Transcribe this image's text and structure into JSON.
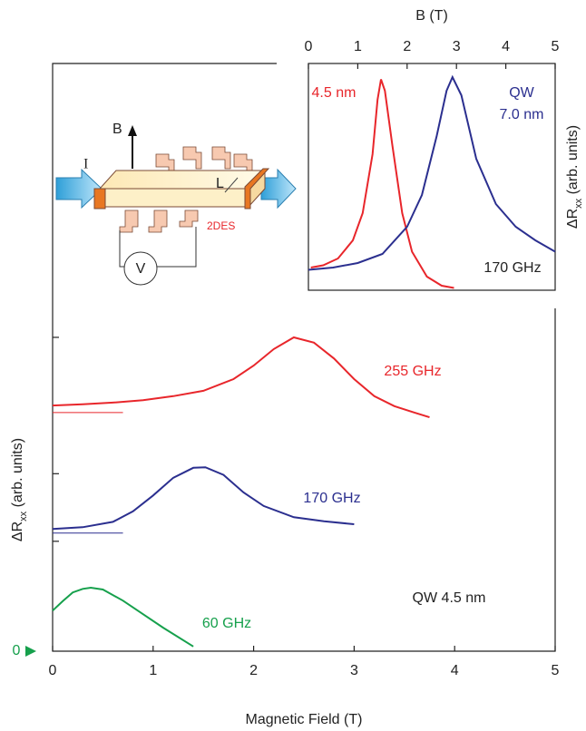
{
  "chart_data": [
    {
      "type": "line",
      "xlabel": "Magnetic Field (T)",
      "ylabel": {
        "main": "ΔR",
        "sub": "xx",
        "rest": " (arb. units)"
      },
      "xlim": [
        0,
        5
      ],
      "xticks": [
        0,
        1,
        2,
        3,
        4,
        5
      ],
      "ylim": [
        0,
        10
      ],
      "yticks": [
        0
      ],
      "zero_color": "#16a04c",
      "minor_yticks": [
        1.87,
        3.02,
        5.34
      ],
      "annotation": "QW 4.5 nm",
      "series": [
        {
          "label": "255 GHz",
          "color": "#e8262b",
          "x": [
            0,
            0.3,
            0.6,
            0.9,
            1.2,
            1.5,
            1.8,
            2.0,
            2.2,
            2.4,
            2.6,
            2.8,
            3.0,
            3.2,
            3.4,
            3.6,
            3.75
          ],
          "values": [
            4.18,
            4.2,
            4.23,
            4.27,
            4.34,
            4.43,
            4.63,
            4.86,
            5.14,
            5.34,
            5.25,
            4.98,
            4.63,
            4.34,
            4.17,
            4.06,
            3.98
          ],
          "baseline": {
            "x": [
              0,
              0.7
            ],
            "value": 4.06
          }
        },
        {
          "label": "170 GHz",
          "color": "#2b2f8f",
          "x": [
            0,
            0.3,
            0.6,
            0.8,
            1.0,
            1.2,
            1.4,
            1.52,
            1.7,
            1.9,
            2.1,
            2.4,
            2.7,
            3.0
          ],
          "values": [
            2.08,
            2.11,
            2.2,
            2.38,
            2.65,
            2.95,
            3.12,
            3.13,
            3.0,
            2.7,
            2.47,
            2.28,
            2.21,
            2.16
          ],
          "baseline": {
            "x": [
              0,
              0.7
            ],
            "value": 2.01
          }
        },
        {
          "label": "60 GHz",
          "color": "#16a04c",
          "x": [
            0,
            0.1,
            0.2,
            0.3,
            0.38,
            0.5,
            0.7,
            0.9,
            1.1,
            1.4
          ],
          "values": [
            0.69,
            0.85,
            1.0,
            1.06,
            1.08,
            1.05,
            0.86,
            0.63,
            0.4,
            0.08
          ]
        }
      ]
    },
    {
      "type": "line",
      "xlabel": "B (T)",
      "ylabel": {
        "main": "ΔR",
        "sub": "xx",
        "rest": " (arb. units)"
      },
      "xlim": [
        0,
        5
      ],
      "xticks": [
        0,
        1,
        2,
        3,
        4,
        5
      ],
      "ylim": [
        0,
        1
      ],
      "annotation": "170 GHz",
      "series": [
        {
          "label_lines": [
            "4.5 nm"
          ],
          "color": "#e8262b",
          "x": [
            0.05,
            0.3,
            0.6,
            0.9,
            1.1,
            1.3,
            1.4,
            1.47,
            1.55,
            1.7,
            1.9,
            2.1,
            2.4,
            2.7,
            2.95
          ],
          "values": [
            0.1,
            0.11,
            0.14,
            0.22,
            0.34,
            0.6,
            0.84,
            0.93,
            0.88,
            0.64,
            0.34,
            0.17,
            0.06,
            0.02,
            0.01
          ]
        },
        {
          "label_lines": [
            "QW",
            "7.0 nm"
          ],
          "color": "#2b2f8f",
          "x": [
            0,
            0.5,
            1.0,
            1.5,
            2.0,
            2.3,
            2.6,
            2.8,
            2.92,
            3.1,
            3.4,
            3.8,
            4.2,
            4.6,
            5.0
          ],
          "values": [
            0.09,
            0.1,
            0.12,
            0.16,
            0.28,
            0.42,
            0.68,
            0.88,
            0.94,
            0.86,
            0.58,
            0.38,
            0.28,
            0.22,
            0.17
          ]
        }
      ]
    }
  ],
  "schematic": {
    "current": "I",
    "field": "B",
    "length": "L",
    "layer": "2DES",
    "voltmeter": "V"
  }
}
